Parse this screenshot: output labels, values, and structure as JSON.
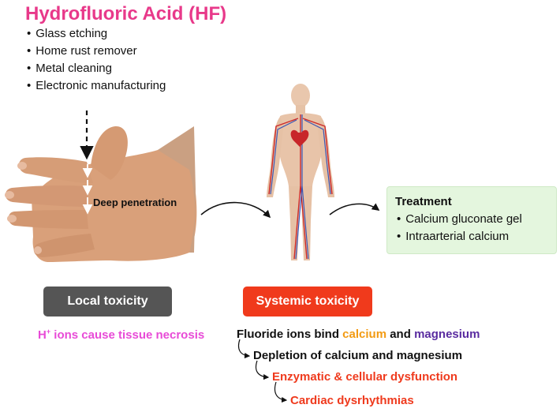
{
  "title": "Hydrofluoric Acid (HF)",
  "uses": [
    "Glass etching",
    "Home rust remover",
    "Metal cleaning",
    "Electronic manufacturing"
  ],
  "penetration_label": "Deep penetration",
  "treatment": {
    "title": "Treatment",
    "items": [
      "Calcium gluconate gel",
      "Intraarterial calcium"
    ]
  },
  "local": {
    "label": "Local toxicity",
    "desc_h": "H",
    "desc_sup": "+",
    "desc_rest": " ions cause tissue necrosis"
  },
  "systemic": {
    "label": "Systemic toxicity",
    "chain1_pre": "Fluoride ions bind ",
    "chain1_calcium": "calcium",
    "chain1_and": " and ",
    "chain1_magnesium": "magnesium",
    "chain2": "Depletion of calcium and magnesium",
    "chain3": "Enzymatic & cellular dysfunction",
    "chain4": "Cardiac dysrhythmias"
  },
  "colors": {
    "title": "#e8398a",
    "local_pill": "#555555",
    "systemic_pill": "#f03a1c",
    "calcium": "#f29a12",
    "magnesium": "#5a2ca0",
    "treatment_bg": "#e4f6de"
  }
}
